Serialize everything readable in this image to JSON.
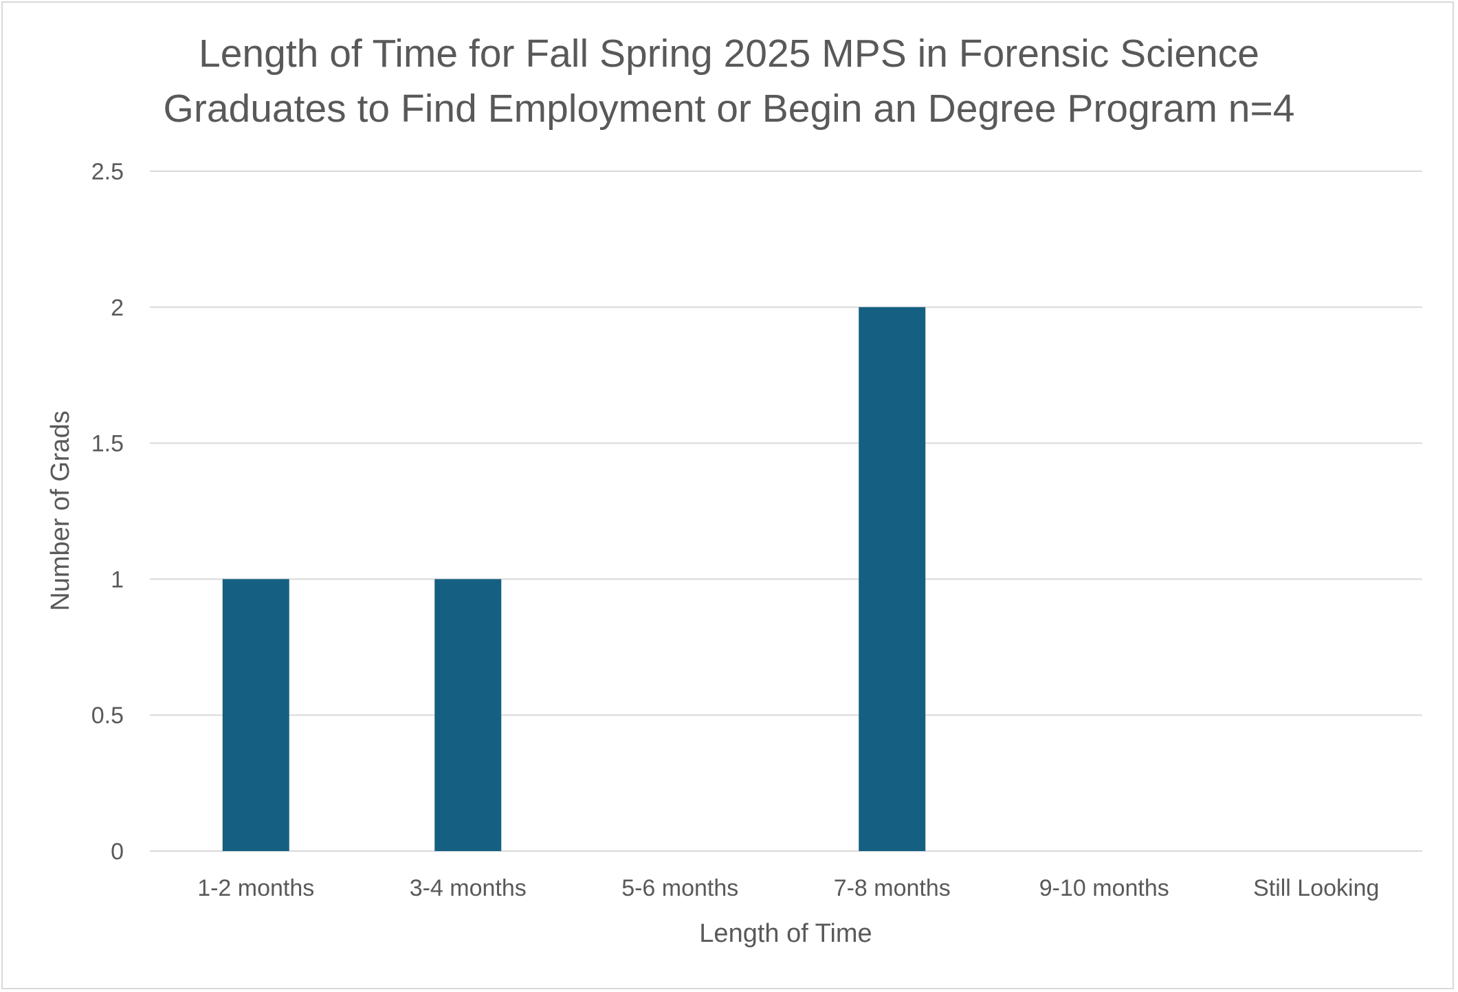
{
  "chart_data": {
    "type": "bar",
    "title_lines": [
      "Length of Time for Fall Spring 2025 MPS in Forensic Science",
      "Graduates to Find Employment or Begin an Degree Program n=4"
    ],
    "xlabel": "Length of Time",
    "ylabel": "Number of Grads",
    "categories": [
      "1-2 months",
      "3-4 months",
      "5-6 months",
      "7-8 months",
      "9-10 months",
      "Still Looking"
    ],
    "values": [
      1,
      1,
      0,
      2,
      0,
      0
    ],
    "ylim": [
      0,
      2.5
    ],
    "yticks": [
      0,
      0.5,
      1,
      1.5,
      2,
      2.5
    ],
    "ytick_labels": [
      "0",
      "0.5",
      "1",
      "1.5",
      "2",
      "2.5"
    ],
    "grid": true,
    "legend": "none",
    "bar_color": "#155f82",
    "grid_color": "#d9d9d9",
    "text_color": "#595959"
  }
}
